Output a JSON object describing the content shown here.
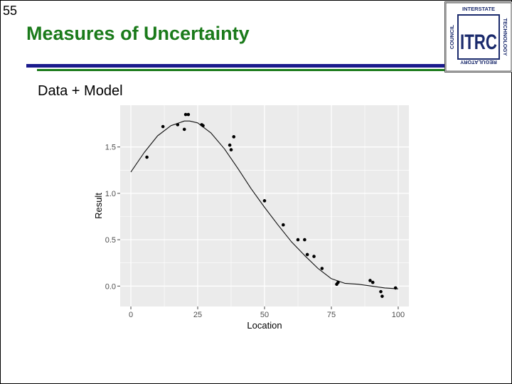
{
  "slide": {
    "number": "55",
    "title": "Measures of Uncertainty",
    "subtitle": "Data + Model"
  },
  "logo": {
    "initials": "ITRC",
    "ring_top": "INTERSTATE",
    "ring_right": "TECHNOLOGY",
    "ring_bottom": "REGULATORY",
    "ring_left": "COUNCIL"
  },
  "colors": {
    "title": "#1a7a1a",
    "rule_blue": "#1a1a8c",
    "rule_green": "#1a7a1a",
    "logo_blue": "#1a2a6c",
    "logo_green": "#2a7a2a",
    "panel": "#ebebeb",
    "grid": "#ffffff"
  },
  "chart_data": {
    "type": "scatter",
    "title": "",
    "xlabel": "Location",
    "ylabel": "Result",
    "xlim": [
      -4,
      104
    ],
    "ylim": [
      -0.22,
      1.95
    ],
    "xticks": [
      0,
      25,
      50,
      75,
      100
    ],
    "xtick_labels": [
      "0",
      "25",
      "50",
      "75",
      "100"
    ],
    "yticks": [
      0.0,
      0.5,
      1.0,
      1.5
    ],
    "ytick_labels": [
      "0.0",
      "0.5",
      "1.0",
      "1.5"
    ],
    "grid": true,
    "points": [
      {
        "x": 6,
        "y": 1.39
      },
      {
        "x": 12,
        "y": 1.72
      },
      {
        "x": 17.5,
        "y": 1.74
      },
      {
        "x": 20,
        "y": 1.69
      },
      {
        "x": 20.5,
        "y": 1.85
      },
      {
        "x": 21.5,
        "y": 1.85
      },
      {
        "x": 26.5,
        "y": 1.74
      },
      {
        "x": 27,
        "y": 1.73
      },
      {
        "x": 37,
        "y": 1.52
      },
      {
        "x": 37.5,
        "y": 1.47
      },
      {
        "x": 38.5,
        "y": 1.61
      },
      {
        "x": 50,
        "y": 0.92
      },
      {
        "x": 57,
        "y": 0.66
      },
      {
        "x": 62.5,
        "y": 0.5
      },
      {
        "x": 65,
        "y": 0.5
      },
      {
        "x": 66,
        "y": 0.34
      },
      {
        "x": 68.5,
        "y": 0.32
      },
      {
        "x": 71.5,
        "y": 0.19
      },
      {
        "x": 77,
        "y": 0.02
      },
      {
        "x": 77.5,
        "y": 0.04
      },
      {
        "x": 89.5,
        "y": 0.06
      },
      {
        "x": 90.5,
        "y": 0.04
      },
      {
        "x": 93.5,
        "y": -0.06
      },
      {
        "x": 94,
        "y": -0.11
      },
      {
        "x": 99,
        "y": -0.02
      }
    ],
    "model_curve": {
      "x": [
        0,
        5,
        10,
        15,
        20,
        22,
        25,
        30,
        35,
        40,
        45,
        50,
        55,
        60,
        65,
        70,
        75,
        80,
        85,
        90,
        95,
        100
      ],
      "y": [
        1.23,
        1.44,
        1.62,
        1.73,
        1.78,
        1.78,
        1.76,
        1.65,
        1.48,
        1.27,
        1.05,
        0.85,
        0.66,
        0.48,
        0.33,
        0.19,
        0.08,
        0.03,
        0.02,
        0.0,
        -0.02,
        -0.03
      ]
    }
  }
}
